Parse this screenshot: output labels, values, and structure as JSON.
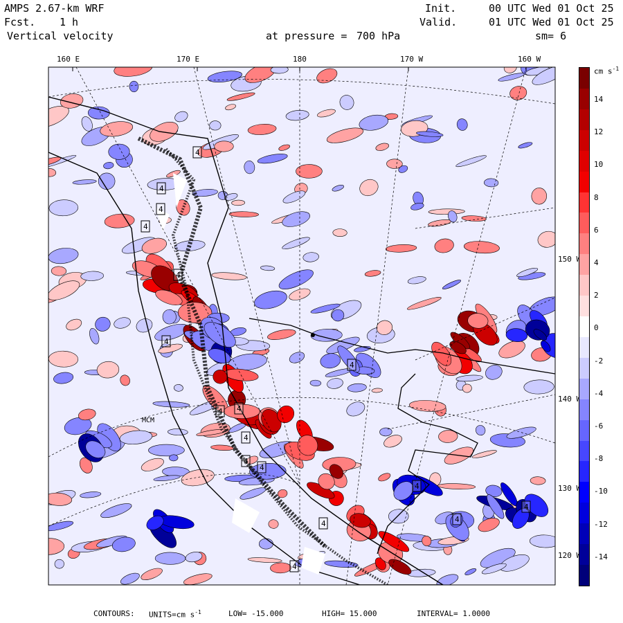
{
  "header": {
    "model": "AMPS 2.67-km WRF",
    "forecast_label": "Fcst.",
    "forecast_value": "1 h",
    "field": "Vertical velocity",
    "level_label": "at pressure =",
    "level_value": "700 hPa",
    "init_label": "Init.",
    "init_value": "00 UTC Wed 01 Oct 25",
    "valid_label": "Valid.",
    "valid_value": "01 UTC Wed 01 Oct 25",
    "smoothing": "sm= 6"
  },
  "map": {
    "top_lon_labels": [
      "160 E",
      "170 E",
      "180",
      "170 W",
      "160 W"
    ],
    "right_lat_labels": [
      "150 W",
      "140 W",
      "130 W",
      "120 W"
    ],
    "box_label": "4",
    "place_label": "MCM"
  },
  "colorbar": {
    "units_label": "cm s",
    "units_exp": "-1",
    "ticks": [
      "14",
      "12",
      "10",
      "8",
      "6",
      "4",
      "2",
      "0",
      "-2",
      "-4",
      "-6",
      "-8",
      "-10",
      "-12",
      "-14"
    ],
    "colors": [
      "#7a0000",
      "#990000",
      "#b30000",
      "#cc0000",
      "#e00000",
      "#f20000",
      "#ff3333",
      "#ff5c5c",
      "#ff8080",
      "#ffa3a3",
      "#ffc7c7",
      "#ffe0e0",
      "#ffffff",
      "#e8e8ff",
      "#ccccff",
      "#a8a8ff",
      "#8585ff",
      "#6666ff",
      "#4747ff",
      "#2626ff",
      "#0000ff",
      "#0000dd",
      "#0000b8",
      "#000099",
      "#00007a"
    ]
  },
  "footer": {
    "contours_label": "CONTOURS:",
    "units_label": "UNITS=cm s",
    "units_exp": "-1",
    "low": "LOW= -15.000",
    "high": "HIGH= 15.000",
    "interval": "INTERVAL= 1.0000"
  }
}
